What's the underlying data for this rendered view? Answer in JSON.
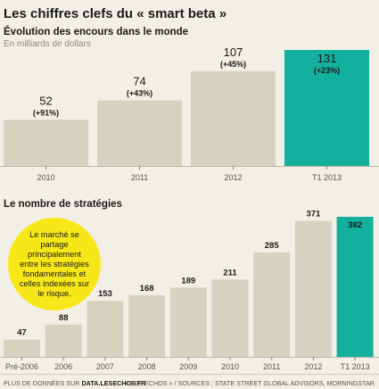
{
  "title": "Les chiffres clefs du « smart beta »",
  "note": "Le marché se partage principalement entre les stratégies fondamentales et celles indexées sur le risque.",
  "footer": {
    "left_prefix": "PLUS DE DONNÉES SUR",
    "left_link": "DATA.LESECHOS.FR",
    "right": "« LES ECHOS » / SOURCES : STATE STREET GLOBAL ADVISORS, MORNINGSTAR"
  },
  "colors": {
    "bar": "#d6d2c0",
    "highlight": "#14b09e",
    "background": "#f2efe6",
    "bubble": "#f7e719"
  },
  "chart_data": [
    {
      "type": "bar",
      "title": "Évolution des encours dans le monde",
      "subtitle": "En milliards de dollars",
      "categories": [
        "2010",
        "2011",
        "2012",
        "T1 2013"
      ],
      "values": [
        52,
        74,
        107,
        131
      ],
      "data_labels": [
        "52",
        "74",
        "107",
        "131"
      ],
      "growth_labels": [
        "(+91%)",
        "(+43%)",
        "(+45%)",
        "(+23%)"
      ],
      "highlight_index": 3,
      "ylim": [
        0,
        131
      ]
    },
    {
      "type": "bar",
      "title": "Le nombre de stratégies",
      "categories": [
        "Pré-2006",
        "2006",
        "2007",
        "2008",
        "2009",
        "2010",
        "2011",
        "2012",
        "T1 2013"
      ],
      "values": [
        47,
        88,
        153,
        168,
        189,
        211,
        285,
        371,
        382
      ],
      "data_labels": [
        "47",
        "88",
        "153",
        "168",
        "189",
        "211",
        "285",
        "371",
        "382"
      ],
      "highlight_index": 8,
      "ylim": [
        0,
        382
      ]
    }
  ]
}
